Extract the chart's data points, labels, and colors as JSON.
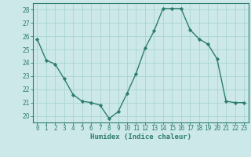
{
  "x": [
    0,
    1,
    2,
    3,
    4,
    5,
    6,
    7,
    8,
    9,
    10,
    11,
    12,
    13,
    14,
    15,
    16,
    17,
    18,
    19,
    20,
    21,
    22,
    23
  ],
  "y": [
    25.8,
    24.2,
    23.9,
    22.8,
    21.6,
    21.1,
    21.0,
    20.8,
    19.8,
    20.3,
    21.7,
    23.2,
    25.1,
    26.4,
    28.1,
    28.1,
    28.1,
    26.5,
    25.8,
    25.4,
    24.3,
    21.1,
    21.0,
    21.0
  ],
  "line_color": "#2e7d6e",
  "marker": "D",
  "marker_size": 2.2,
  "bg_color": "#cce8e8",
  "grid_color": "#aad4d4",
  "tick_color": "#2e7d6e",
  "xlabel": "Humidex (Indice chaleur)",
  "xlim": [
    -0.5,
    23.5
  ],
  "ylim": [
    19.5,
    28.5
  ],
  "yticks": [
    20,
    21,
    22,
    23,
    24,
    25,
    26,
    27,
    28
  ],
  "xticks": [
    0,
    1,
    2,
    3,
    4,
    5,
    6,
    7,
    8,
    9,
    10,
    11,
    12,
    13,
    14,
    15,
    16,
    17,
    18,
    19,
    20,
    21,
    22,
    23
  ],
  "xlabel_fontsize": 6.5,
  "tick_fontsize": 5.5,
  "line_width": 1.0
}
